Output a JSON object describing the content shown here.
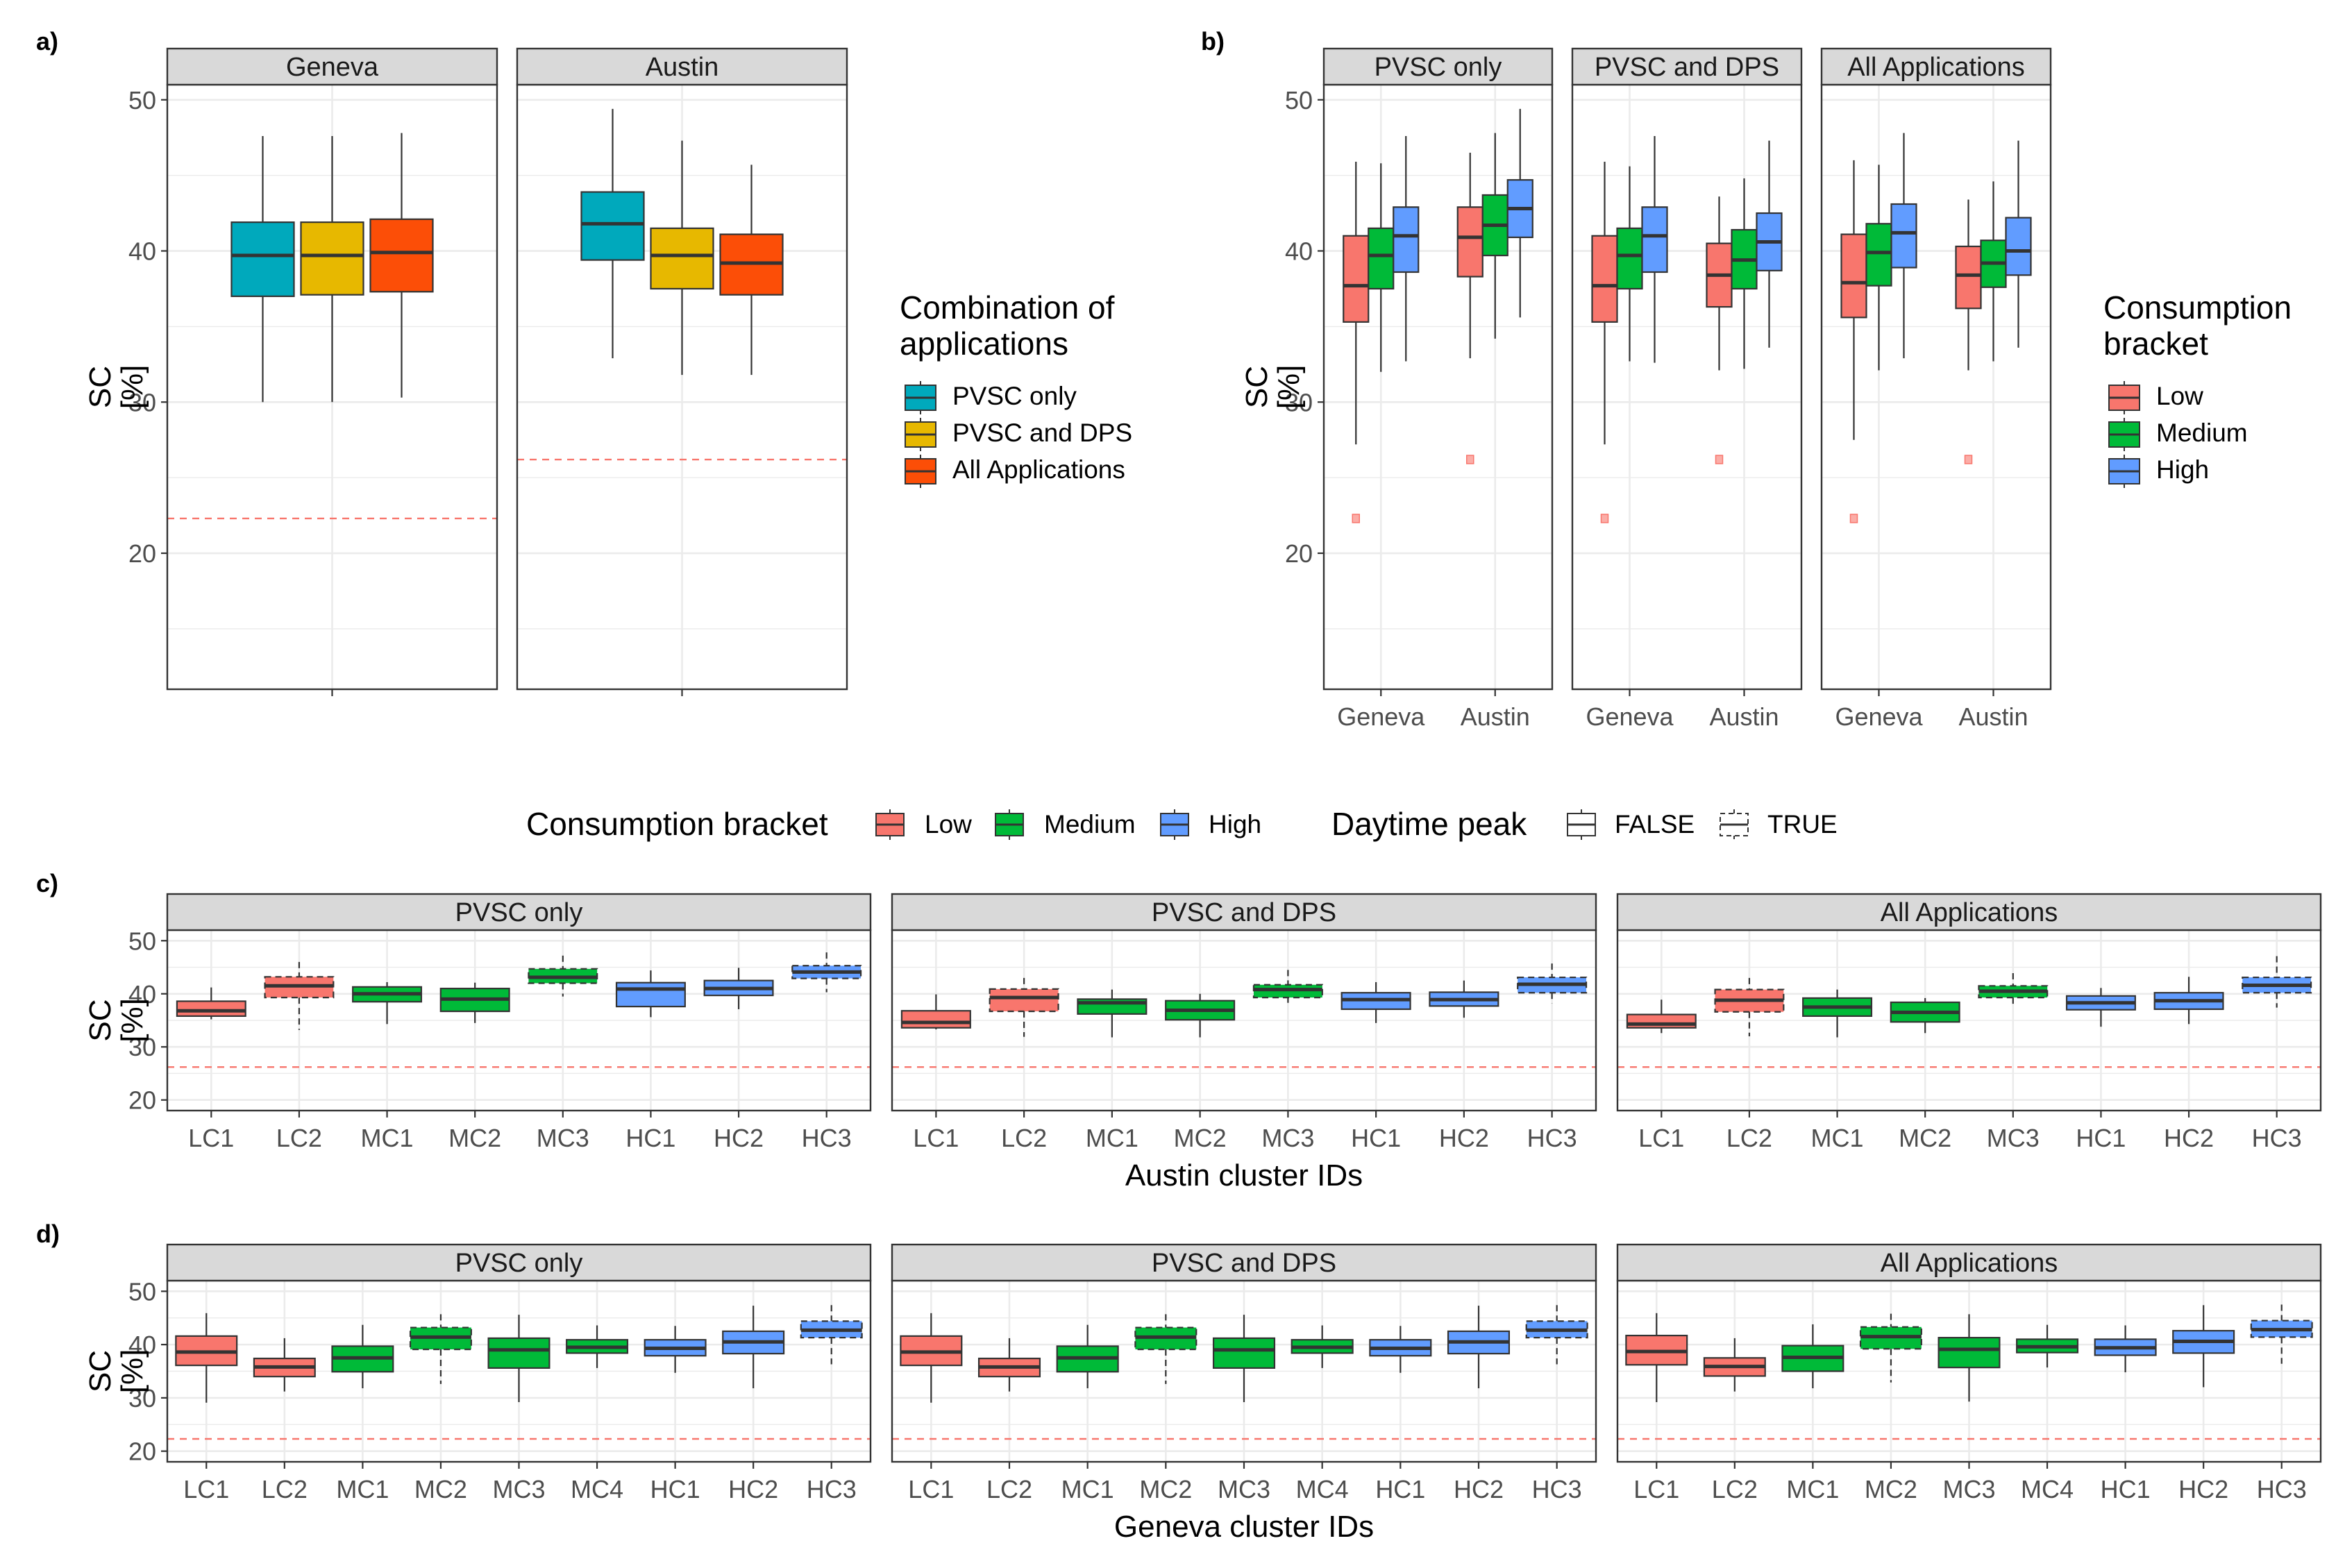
{
  "colors": {
    "pvsc_only": "#00A9BC",
    "pvsc_dps": "#E7B800",
    "all_apps": "#FC4E07",
    "low": "#F8766D",
    "medium": "#00BA38",
    "high": "#619CFF",
    "reference_line": "#F8766D",
    "strip_bg": "#D9D9D9",
    "grid": "#EBEBEB"
  },
  "panel_tags": [
    "a)",
    "b)",
    "c)",
    "d)"
  ],
  "legend_a": {
    "title_line1": "Combination of",
    "title_line2": "applications",
    "items": [
      {
        "label": "PVSC only",
        "color": "#00A9BC"
      },
      {
        "label": "PVSC and DPS",
        "color": "#E7B800"
      },
      {
        "label": "All Applications",
        "color": "#FC4E07"
      }
    ]
  },
  "legend_b": {
    "title_line1": "Consumption",
    "title_line2": "bracket",
    "items": [
      {
        "label": "Low",
        "color": "#F8766D"
      },
      {
        "label": "Medium",
        "color": "#00BA38"
      },
      {
        "label": "High",
        "color": "#619CFF"
      }
    ]
  },
  "legend_cd": {
    "bracket_title": "Consumption bracket",
    "bracket_items": [
      {
        "label": "Low",
        "color": "#F8766D"
      },
      {
        "label": "Medium",
        "color": "#00BA38"
      },
      {
        "label": "High",
        "color": "#619CFF"
      }
    ],
    "peak_title": "Daytime peak",
    "peak_items": [
      "FALSE",
      "TRUE"
    ]
  },
  "chart_data": [
    {
      "id": "a",
      "type": "boxplot",
      "ylabel_line1": "SC",
      "ylabel_line2": "[%]",
      "ylim": [
        11,
        51
      ],
      "yticks": [
        20,
        30,
        40,
        50
      ],
      "facets": [
        {
          "strip": "Geneva",
          "ref_line": 22.3,
          "boxes": [
            {
              "series": "PVSC only",
              "min": 30,
              "q1": 37,
              "median": 39.7,
              "q3": 41.9,
              "max": 47.6
            },
            {
              "series": "PVSC and DPS",
              "min": 30,
              "q1": 37.1,
              "median": 39.7,
              "q3": 41.9,
              "max": 47.6
            },
            {
              "series": "All Applications",
              "min": 30.3,
              "q1": 37.3,
              "median": 39.9,
              "q3": 42.1,
              "max": 47.8
            }
          ]
        },
        {
          "strip": "Austin",
          "ref_line": 26.2,
          "boxes": [
            {
              "series": "PVSC only",
              "min": 32.9,
              "q1": 39.4,
              "median": 41.8,
              "q3": 43.9,
              "max": 49.4
            },
            {
              "series": "PVSC and DPS",
              "min": 31.8,
              "q1": 37.5,
              "median": 39.7,
              "q3": 41.5,
              "max": 47.3
            },
            {
              "series": "All Applications",
              "min": 31.8,
              "q1": 37.1,
              "median": 39.2,
              "q3": 41.1,
              "max": 45.7
            }
          ]
        }
      ]
    },
    {
      "id": "b",
      "type": "boxplot",
      "ylabel_line1": "SC",
      "ylabel_line2": "[%]",
      "ylim": [
        11,
        51
      ],
      "yticks": [
        20,
        30,
        40,
        50
      ],
      "categories": [
        "Geneva",
        "Austin"
      ],
      "facets": [
        {
          "strip": "PVSC only",
          "groups": [
            {
              "category": "Geneva",
              "ref_mark": 22.3,
              "boxes": [
                {
                  "series": "Low",
                  "min": 27.2,
                  "q1": 35.3,
                  "median": 37.7,
                  "q3": 41,
                  "max": 45.9
                },
                {
                  "series": "Medium",
                  "min": 32,
                  "q1": 37.5,
                  "median": 39.7,
                  "q3": 41.5,
                  "max": 45.8
                },
                {
                  "series": "High",
                  "min": 32.7,
                  "q1": 38.6,
                  "median": 41,
                  "q3": 42.9,
                  "max": 47.6
                }
              ]
            },
            {
              "category": "Austin",
              "ref_mark": 26.2,
              "boxes": [
                {
                  "series": "Low",
                  "min": 32.9,
                  "q1": 38.3,
                  "median": 40.9,
                  "q3": 42.9,
                  "max": 46.5
                },
                {
                  "series": "Medium",
                  "min": 34.2,
                  "q1": 39.7,
                  "median": 41.7,
                  "q3": 43.7,
                  "max": 47.8
                },
                {
                  "series": "High",
                  "min": 35.6,
                  "q1": 40.9,
                  "median": 42.8,
                  "q3": 44.7,
                  "max": 49.4
                }
              ]
            }
          ]
        },
        {
          "strip": "PVSC and DPS",
          "groups": [
            {
              "category": "Geneva",
              "ref_mark": 22.3,
              "boxes": [
                {
                  "series": "Low",
                  "min": 27.2,
                  "q1": 35.3,
                  "median": 37.7,
                  "q3": 41,
                  "max": 45.9
                },
                {
                  "series": "Medium",
                  "min": 32.7,
                  "q1": 37.5,
                  "median": 39.7,
                  "q3": 41.5,
                  "max": 45.6
                },
                {
                  "series": "High",
                  "min": 32.6,
                  "q1": 38.6,
                  "median": 41,
                  "q3": 42.9,
                  "max": 47.6
                }
              ]
            },
            {
              "category": "Austin",
              "ref_mark": 26.2,
              "boxes": [
                {
                  "series": "Low",
                  "min": 32.1,
                  "q1": 36.3,
                  "median": 38.4,
                  "q3": 40.5,
                  "max": 43.6
                },
                {
                  "series": "Medium",
                  "min": 32.2,
                  "q1": 37.5,
                  "median": 39.4,
                  "q3": 41.4,
                  "max": 44.8
                },
                {
                  "series": "High",
                  "min": 33.6,
                  "q1": 38.7,
                  "median": 40.6,
                  "q3": 42.5,
                  "max": 47.3
                }
              ]
            }
          ]
        },
        {
          "strip": "All Applications",
          "groups": [
            {
              "category": "Geneva",
              "ref_mark": 22.3,
              "boxes": [
                {
                  "series": "Low",
                  "min": 27.5,
                  "q1": 35.6,
                  "median": 37.9,
                  "q3": 41.1,
                  "max": 46
                },
                {
                  "series": "Medium",
                  "min": 32.1,
                  "q1": 37.7,
                  "median": 39.9,
                  "q3": 41.8,
                  "max": 45.7
                },
                {
                  "series": "High",
                  "min": 32.9,
                  "q1": 38.9,
                  "median": 41.2,
                  "q3": 43.1,
                  "max": 47.8
                }
              ]
            },
            {
              "category": "Austin",
              "ref_mark": 26.2,
              "boxes": [
                {
                  "series": "Low",
                  "min": 32.1,
                  "q1": 36.2,
                  "median": 38.4,
                  "q3": 40.3,
                  "max": 43.4
                },
                {
                  "series": "Medium",
                  "min": 32.7,
                  "q1": 37.6,
                  "median": 39.2,
                  "q3": 40.7,
                  "max": 44.6
                },
                {
                  "series": "High",
                  "min": 33.6,
                  "q1": 38.4,
                  "median": 40,
                  "q3": 42.2,
                  "max": 47.3
                }
              ]
            }
          ]
        }
      ]
    },
    {
      "id": "c",
      "type": "boxplot",
      "ylabel_line1": "SC",
      "ylabel_line2": "[%]",
      "xlabel": "Austin cluster IDs",
      "ylim": [
        18,
        52
      ],
      "yticks": [
        20,
        30,
        40,
        50
      ],
      "ref_line": 26.2,
      "categories": [
        "LC1",
        "LC2",
        "MC1",
        "MC2",
        "MC3",
        "HC1",
        "HC2",
        "HC3"
      ],
      "category_brackets": [
        "Low",
        "Low",
        "Medium",
        "Medium",
        "Medium",
        "High",
        "High",
        "High"
      ],
      "category_peak": [
        false,
        true,
        false,
        false,
        true,
        false,
        false,
        true
      ],
      "facets": [
        {
          "strip": "PVSC only",
          "boxes": [
            {
              "min": 35.2,
              "q1": 35.8,
              "median": 36.8,
              "q3": 38.6,
              "max": 41.2
            },
            {
              "min": 33.2,
              "q1": 39.3,
              "median": 41.5,
              "q3": 43.2,
              "max": 46
            },
            {
              "min": 34.3,
              "q1": 38.5,
              "median": 40,
              "q3": 41.3,
              "max": 42.2
            },
            {
              "min": 34.5,
              "q1": 36.7,
              "median": 39,
              "q3": 41,
              "max": 42.1
            },
            {
              "min": 39.5,
              "q1": 42,
              "median": 43.1,
              "q3": 44.7,
              "max": 47.2
            },
            {
              "min": 35.6,
              "q1": 37.6,
              "median": 40.9,
              "q3": 42.1,
              "max": 44.4
            },
            {
              "min": 37.1,
              "q1": 39.7,
              "median": 41,
              "q3": 42.5,
              "max": 44.9
            },
            {
              "min": 40.3,
              "q1": 42.9,
              "median": 44.1,
              "q3": 45.3,
              "max": 47.8
            }
          ]
        },
        {
          "strip": "PVSC and DPS",
          "boxes": [
            {
              "min": 33.3,
              "q1": 33.6,
              "median": 34.6,
              "q3": 36.8,
              "max": 39.9
            },
            {
              "min": 31.9,
              "q1": 36.7,
              "median": 39.3,
              "q3": 40.9,
              "max": 43
            },
            {
              "min": 31.8,
              "q1": 36.2,
              "median": 38.3,
              "q3": 39,
              "max": 40.8
            },
            {
              "min": 31.8,
              "q1": 35.1,
              "median": 36.9,
              "q3": 38.7,
              "max": 40
            },
            {
              "min": 38.3,
              "q1": 39.3,
              "median": 40.8,
              "q3": 41.7,
              "max": 44.5
            },
            {
              "min": 34.5,
              "q1": 37.1,
              "median": 38.9,
              "q3": 40.2,
              "max": 42.2
            },
            {
              "min": 35.5,
              "q1": 37.7,
              "median": 38.9,
              "q3": 40.3,
              "max": 42.5
            },
            {
              "min": 38.2,
              "q1": 40.2,
              "median": 41.8,
              "q3": 43.1,
              "max": 45.7
            }
          ]
        },
        {
          "strip": "All Applications",
          "boxes": [
            {
              "min": 32.6,
              "q1": 33.6,
              "median": 34.3,
              "q3": 36.1,
              "max": 38.9
            },
            {
              "min": 32,
              "q1": 36.6,
              "median": 38.8,
              "q3": 40.8,
              "max": 43
            },
            {
              "min": 31.8,
              "q1": 35.8,
              "median": 37.5,
              "q3": 39.2,
              "max": 40.8
            },
            {
              "min": 32.6,
              "q1": 34.7,
              "median": 36.5,
              "q3": 38.4,
              "max": 39.2
            },
            {
              "min": 38.1,
              "q1": 39.3,
              "median": 40.5,
              "q3": 41.5,
              "max": 43.9
            },
            {
              "min": 33.8,
              "q1": 37,
              "median": 38.3,
              "q3": 39.6,
              "max": 41.1
            },
            {
              "min": 34.3,
              "q1": 37.1,
              "median": 38.7,
              "q3": 40.2,
              "max": 43.2
            },
            {
              "min": 37.4,
              "q1": 40.2,
              "median": 41.6,
              "q3": 43.1,
              "max": 47.1
            }
          ]
        }
      ]
    },
    {
      "id": "d",
      "type": "boxplot",
      "ylabel_line1": "SC",
      "ylabel_line2": "[%]",
      "xlabel": "Geneva cluster IDs",
      "ylim": [
        18,
        52
      ],
      "yticks": [
        20,
        30,
        40,
        50
      ],
      "ref_line": 22.3,
      "categories": [
        "LC1",
        "LC2",
        "MC1",
        "MC2",
        "MC3",
        "MC4",
        "HC1",
        "HC2",
        "HC3"
      ],
      "category_brackets": [
        "Low",
        "Low",
        "Medium",
        "Medium",
        "Medium",
        "Medium",
        "High",
        "High",
        "High"
      ],
      "category_peak": [
        false,
        false,
        false,
        true,
        false,
        false,
        false,
        false,
        true
      ],
      "facets": [
        {
          "strip": "PVSC only",
          "boxes": [
            {
              "min": 29.1,
              "q1": 36.1,
              "median": 38.6,
              "q3": 41.6,
              "max": 45.9
            },
            {
              "min": 31.2,
              "q1": 34,
              "median": 35.8,
              "q3": 37.4,
              "max": 41.2
            },
            {
              "min": 31.8,
              "q1": 34.9,
              "median": 37.5,
              "q3": 39.7,
              "max": 43.7
            },
            {
              "min": 32.6,
              "q1": 39.1,
              "median": 41.4,
              "q3": 43.2,
              "max": 45.7
            },
            {
              "min": 29.2,
              "q1": 35.6,
              "median": 39,
              "q3": 41.2,
              "max": 45.6
            },
            {
              "min": 35.6,
              "q1": 38.4,
              "median": 39.5,
              "q3": 40.9,
              "max": 43.6
            },
            {
              "min": 34.7,
              "q1": 37.9,
              "median": 39.3,
              "q3": 40.9,
              "max": 43.5
            },
            {
              "min": 31.8,
              "q1": 38.3,
              "median": 40.5,
              "q3": 42.5,
              "max": 47.3
            },
            {
              "min": 36.3,
              "q1": 41.3,
              "median": 42.7,
              "q3": 44.4,
              "max": 47.4
            }
          ]
        },
        {
          "strip": "PVSC and DPS",
          "boxes": [
            {
              "min": 29.1,
              "q1": 36.1,
              "median": 38.6,
              "q3": 41.6,
              "max": 45.9
            },
            {
              "min": 31.2,
              "q1": 34,
              "median": 35.8,
              "q3": 37.4,
              "max": 41.2
            },
            {
              "min": 31.8,
              "q1": 34.9,
              "median": 37.5,
              "q3": 39.7,
              "max": 43.7
            },
            {
              "min": 32.6,
              "q1": 39.1,
              "median": 41.4,
              "q3": 43.2,
              "max": 45.7
            },
            {
              "min": 29.2,
              "q1": 35.6,
              "median": 39,
              "q3": 41.2,
              "max": 45.6
            },
            {
              "min": 35.6,
              "q1": 38.4,
              "median": 39.5,
              "q3": 40.9,
              "max": 43.6
            },
            {
              "min": 34.7,
              "q1": 37.9,
              "median": 39.3,
              "q3": 40.9,
              "max": 43.5
            },
            {
              "min": 31.8,
              "q1": 38.3,
              "median": 40.5,
              "q3": 42.5,
              "max": 47.3
            },
            {
              "min": 36.3,
              "q1": 41.3,
              "median": 42.7,
              "q3": 44.4,
              "max": 47.4
            }
          ]
        },
        {
          "strip": "All Applications",
          "boxes": [
            {
              "min": 29.2,
              "q1": 36.2,
              "median": 38.7,
              "q3": 41.7,
              "max": 45.9
            },
            {
              "min": 31.2,
              "q1": 34.1,
              "median": 35.9,
              "q3": 37.5,
              "max": 41.2
            },
            {
              "min": 31.8,
              "q1": 35,
              "median": 37.6,
              "q3": 39.8,
              "max": 43.8
            },
            {
              "min": 32.9,
              "q1": 39.2,
              "median": 41.5,
              "q3": 43.3,
              "max": 45.8
            },
            {
              "min": 29.3,
              "q1": 35.7,
              "median": 39.1,
              "q3": 41.3,
              "max": 45.7
            },
            {
              "min": 35.7,
              "q1": 38.5,
              "median": 39.6,
              "q3": 41,
              "max": 43.7
            },
            {
              "min": 34.8,
              "q1": 38,
              "median": 39.4,
              "q3": 41,
              "max": 43.6
            },
            {
              "min": 32,
              "q1": 38.4,
              "median": 40.6,
              "q3": 42.6,
              "max": 47.4
            },
            {
              "min": 36.4,
              "q1": 41.4,
              "median": 42.8,
              "q3": 44.5,
              "max": 47.5
            }
          ]
        }
      ]
    }
  ]
}
